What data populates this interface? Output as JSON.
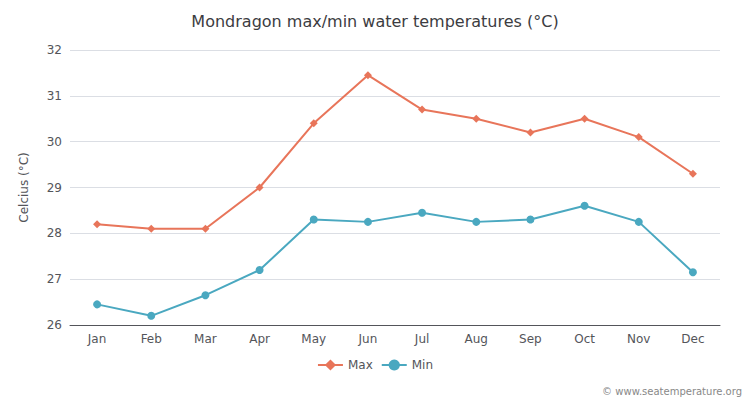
{
  "chart_data": {
    "type": "line",
    "title": "Mondragon max/min water temperatures (°C)",
    "ylabel": "Celcius (°C)",
    "categories": [
      "Jan",
      "Feb",
      "Mar",
      "Apr",
      "May",
      "Jun",
      "Jul",
      "Aug",
      "Sep",
      "Oct",
      "Nov",
      "Dec"
    ],
    "series": [
      {
        "name": "Max",
        "color": "#e8755a",
        "marker": "diamond",
        "values": [
          28.2,
          28.1,
          28.1,
          29.0,
          30.4,
          31.45,
          30.7,
          30.5,
          30.2,
          30.5,
          30.1,
          29.3
        ]
      },
      {
        "name": "Min",
        "color": "#4aa8c0",
        "marker": "circle",
        "values": [
          26.45,
          26.2,
          26.65,
          27.2,
          28.3,
          28.25,
          28.45,
          28.25,
          28.3,
          28.6,
          28.25,
          27.15
        ]
      }
    ],
    "ylim": [
      26,
      32
    ],
    "yticks": [
      26,
      27,
      28,
      29,
      30,
      31,
      32
    ],
    "grid": true,
    "legend": "bottom",
    "annotations": [
      "© www.seatemperature.org"
    ]
  }
}
